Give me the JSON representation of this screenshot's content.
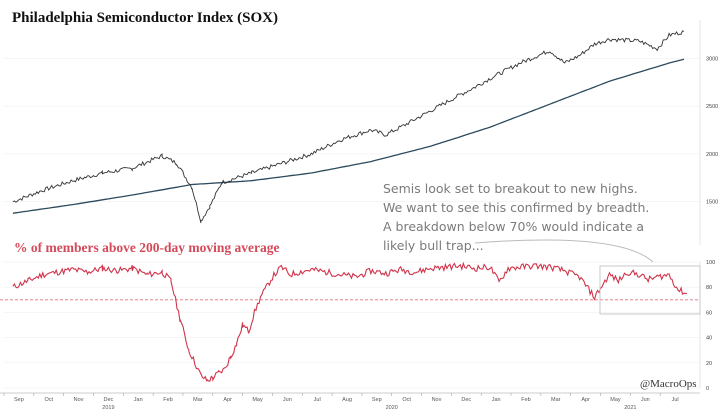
{
  "title": "Philadelphia Semiconductor Index (SOX)",
  "lower_title": "% of members above 200-day moving average",
  "annotation": [
    "Semis look set to breakout to new highs.",
    "We want to see this confirmed by breadth.",
    "A breakdown below 70% would indicate a",
    "likely bull trap..."
  ],
  "watermark": "@MacroOps",
  "colors": {
    "price": "#333333",
    "ma": "#2c4a5e",
    "breadth": "#d0334a",
    "threshold": "#e07080",
    "annotation_box": "#c8c8c8",
    "annotation_arrow": "#bbbbbb",
    "grid": "#eeeeee"
  },
  "x_axis": {
    "months": [
      "Sep",
      "Oct",
      "Nov",
      "Dec",
      "Jan",
      "Feb",
      "Mar",
      "Apr",
      "May",
      "Jun",
      "Jul",
      "Aug",
      "Sep",
      "Oct",
      "Nov",
      "Dec",
      "Jan",
      "Feb",
      "Mar",
      "Apr",
      "May",
      "Jun",
      "Jul"
    ],
    "years": [
      "2019",
      "2020",
      "2021"
    ],
    "year_month_index": [
      0,
      7,
      19
    ]
  },
  "chart_data": [
    {
      "type": "line",
      "title": "Philadelphia Semiconductor Index (SOX)",
      "x_unit": "month index (0 = Sep 2019)",
      "ylim": [
        1100,
        3400
      ],
      "yticks": [
        1500,
        2000,
        2500,
        3000
      ],
      "series": [
        {
          "x": [
            0,
            1,
            2,
            3,
            4,
            5,
            5.5,
            6,
            6.3,
            6.6,
            7,
            8,
            9,
            10,
            11,
            12,
            12.5,
            13,
            14,
            15,
            15.5,
            16,
            17,
            18,
            18.5,
            19,
            19.5,
            20,
            21,
            21.6,
            22,
            22.5
          ],
          "values": [
            1500,
            1620,
            1720,
            1800,
            1850,
            1980,
            1900,
            1650,
            1300,
            1450,
            1700,
            1800,
            1900,
            2000,
            2150,
            2250,
            2200,
            2280,
            2450,
            2620,
            2700,
            2790,
            2950,
            3080,
            2950,
            3030,
            3150,
            3200,
            3180,
            3100,
            3240,
            3280
          ]
        },
        {
          "x": [
            0,
            2,
            4,
            6,
            8,
            10,
            12,
            14,
            16,
            18,
            20,
            22,
            22.5
          ],
          "values": [
            1380,
            1470,
            1570,
            1680,
            1720,
            1800,
            1920,
            2080,
            2280,
            2520,
            2760,
            2950,
            2990
          ]
        }
      ]
    },
    {
      "type": "line",
      "title": "% of members above 200-day moving average",
      "x_unit": "month index (0 = Sep 2019)",
      "ylim": [
        0,
        100
      ],
      "yticks": [
        0,
        20,
        40,
        60,
        80,
        100
      ],
      "threshold": 70,
      "series": [
        {
          "x": [
            0,
            0.5,
            1,
            1.5,
            2,
            2.5,
            3,
            3.5,
            4,
            4.5,
            5,
            5.3,
            5.6,
            5.9,
            6.1,
            6.3,
            6.5,
            6.7,
            6.9,
            7.1,
            7.3,
            7.5,
            7.7,
            7.9,
            8.1,
            8.3,
            8.5,
            8.7,
            9,
            9.3,
            9.6,
            10,
            10.5,
            11,
            11.5,
            12,
            12.5,
            13,
            13.5,
            14,
            14.5,
            15,
            15.5,
            16,
            16.3,
            16.6,
            17,
            17.5,
            18,
            18.5,
            19,
            19.5,
            20,
            20.3,
            20.6,
            21,
            21.3,
            21.6,
            22,
            22.3,
            22.6
          ],
          "values": [
            80,
            85,
            90,
            92,
            94,
            92,
            95,
            93,
            95,
            90,
            92,
            85,
            55,
            30,
            20,
            10,
            6,
            8,
            12,
            15,
            25,
            35,
            50,
            45,
            60,
            72,
            80,
            88,
            96,
            90,
            92,
            94,
            92,
            90,
            88,
            93,
            91,
            94,
            92,
            95,
            96,
            97,
            95,
            96,
            84,
            95,
            96,
            97,
            96,
            93,
            88,
            72,
            90,
            85,
            92,
            90,
            86,
            88,
            90,
            78,
            75
          ]
        }
      ]
    }
  ]
}
